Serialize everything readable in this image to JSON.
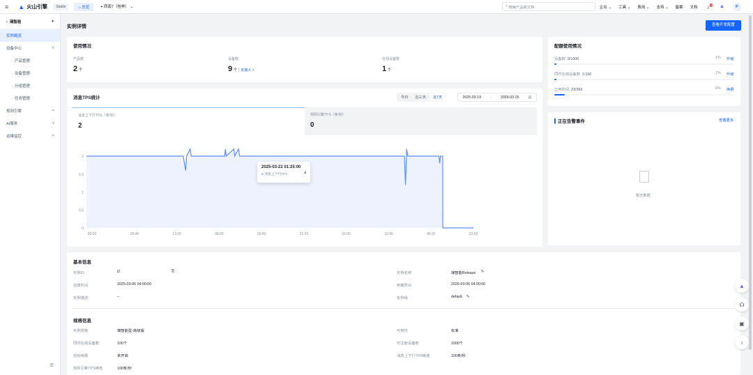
{
  "topbar": {
    "brand": "火山引擎",
    "env_badge": "Stable",
    "home": "总览",
    "region": "西南7（桂林）",
    "search_placeholder": "搜索产品或文档",
    "menu": [
      "企业",
      "工具",
      "费用",
      "支持",
      "备案",
      "文档"
    ],
    "notification_count": "3",
    "avatar": "P"
  },
  "sidebar": {
    "instance": "璃智能",
    "items": [
      {
        "label": "实例概览",
        "active": true
      },
      {
        "label": "设备中心",
        "expand": "up"
      },
      {
        "label": "产品管理",
        "sub": true
      },
      {
        "label": "设备管理",
        "sub": true
      },
      {
        "label": "分组管理",
        "sub": true
      },
      {
        "label": "任务管理",
        "sub": true
      },
      {
        "label": "规则引擎",
        "expand": "down"
      },
      {
        "label": "AI服务",
        "expand": "down"
      },
      {
        "label": "运维监控",
        "expand": "down"
      }
    ]
  },
  "page": {
    "title": "实例详情",
    "dev_config_button": "查看开发配置"
  },
  "usage": {
    "title": "使用情况",
    "stats": [
      {
        "label": "产品数",
        "value": "2",
        "unit": "个"
      },
      {
        "label": "设备数",
        "value": "9",
        "unit": "个",
        "link": "去接入 >"
      },
      {
        "label": "在线设备数",
        "value": "1",
        "unit": "个"
      }
    ]
  },
  "quota": {
    "title": "配额使用情况",
    "items": [
      {
        "label": "设备数",
        "value": "9/1000",
        "percent": 1,
        "action": "升级"
      },
      {
        "label": "同时在线设备数",
        "value": "1/100",
        "percent": 1,
        "action": "升级"
      },
      {
        "label": "已用时间",
        "value": "23/369",
        "percent": 6,
        "action": "续费"
      }
    ]
  },
  "tps": {
    "title": "消息TPS统计",
    "ranges": [
      "今日",
      "近三天",
      "近7天"
    ],
    "active_range": "近7天",
    "date_from": "2025-03-19",
    "date_sep": "-",
    "date_to": "2025-03-25",
    "tabs": [
      {
        "label": "消息上下行TPS（条/秒）",
        "value": "2"
      },
      {
        "label": "规则引擎TPS（条/秒）",
        "value": "0"
      }
    ],
    "tooltip": {
      "time": "2025-03-22 01:25:00",
      "series": "消息上下行TPS",
      "value": "2"
    }
  },
  "chart_data": {
    "type": "area",
    "series": [
      {
        "name": "消息上下行TPS",
        "color": "#5b8ff9",
        "points": [
          [
            "2025-03-19 00:00",
            2
          ],
          [
            "2025-03-20 18:00",
            2
          ],
          [
            "2025-03-20 19:00",
            1.6
          ],
          [
            "2025-03-20 19:30",
            2
          ],
          [
            "2025-03-20 21:00",
            2.2
          ],
          [
            "2025-03-20 21:30",
            2
          ],
          [
            "2025-03-21 12:00",
            2
          ],
          [
            "2025-03-21 12:20",
            2.2
          ],
          [
            "2025-03-21 12:40",
            2
          ],
          [
            "2025-03-21 16:00",
            2.2
          ],
          [
            "2025-03-21 16:20",
            2
          ],
          [
            "2025-03-21 18:00",
            2.2
          ],
          [
            "2025-03-21 18:30",
            2
          ],
          [
            "2025-03-24 18:00",
            2
          ],
          [
            "2025-03-24 18:30",
            1.2
          ],
          [
            "2025-03-24 19:00",
            2.2
          ],
          [
            "2025-03-24 19:30",
            2
          ],
          [
            "2025-03-25 09:00",
            2
          ],
          [
            "2025-03-25 09:20",
            1.8
          ],
          [
            "2025-03-25 09:40",
            2
          ],
          [
            "2025-03-25 10:40",
            2
          ],
          [
            "2025-03-25 10:41",
            0
          ],
          [
            "2025-03-25 23:59",
            0
          ]
        ]
      }
    ],
    "x_range": [
      "2025-03-19 00:00",
      "2025-03-25 23:59"
    ],
    "ylim": [
      0,
      2.2
    ],
    "x_ticks": [
      "00:00",
      "18:40",
      "13:20",
      "08:00",
      "02:40",
      "21:20",
      "16:00",
      "10:40",
      "05:20",
      "23:59"
    ],
    "y_ticks": [
      "0",
      "0.5",
      "1",
      "1.5",
      "2"
    ],
    "grid": false,
    "legend": "none"
  },
  "alarm": {
    "title": "正在告警事件",
    "more": "查看更多",
    "empty": "暂无数据"
  },
  "basic": {
    "title": "基本信息",
    "left": [
      {
        "label": "实例ID",
        "value": "i2"
      },
      {
        "label": "创建时间",
        "value": "2025-03-06 04:00:00"
      },
      {
        "label": "实例描述",
        "value": "–"
      }
    ],
    "right": [
      {
        "label": "实例名称",
        "value": "璃智能Release"
      },
      {
        "label": "到期时间",
        "value": "2026-03-06 04:00:00"
      },
      {
        "label": "实例组",
        "value": "default"
      }
    ]
  },
  "spec": {
    "title": "规格信息",
    "left": [
      {
        "label": "实例规格",
        "value": "璃智能型-高级版"
      },
      {
        "label": "同时在线设备数",
        "value": "100个"
      },
      {
        "label": "自动续费",
        "value": "未开启"
      },
      {
        "label": "规则引擎TPS峰值",
        "value": "100条/秒"
      }
    ],
    "right": [
      {
        "label": "可用性",
        "value": "标准"
      },
      {
        "label": "可注册设备数",
        "value": "1000个"
      },
      {
        "label": "消息上下行TPS峰值",
        "value": "100条/秒"
      }
    ]
  }
}
